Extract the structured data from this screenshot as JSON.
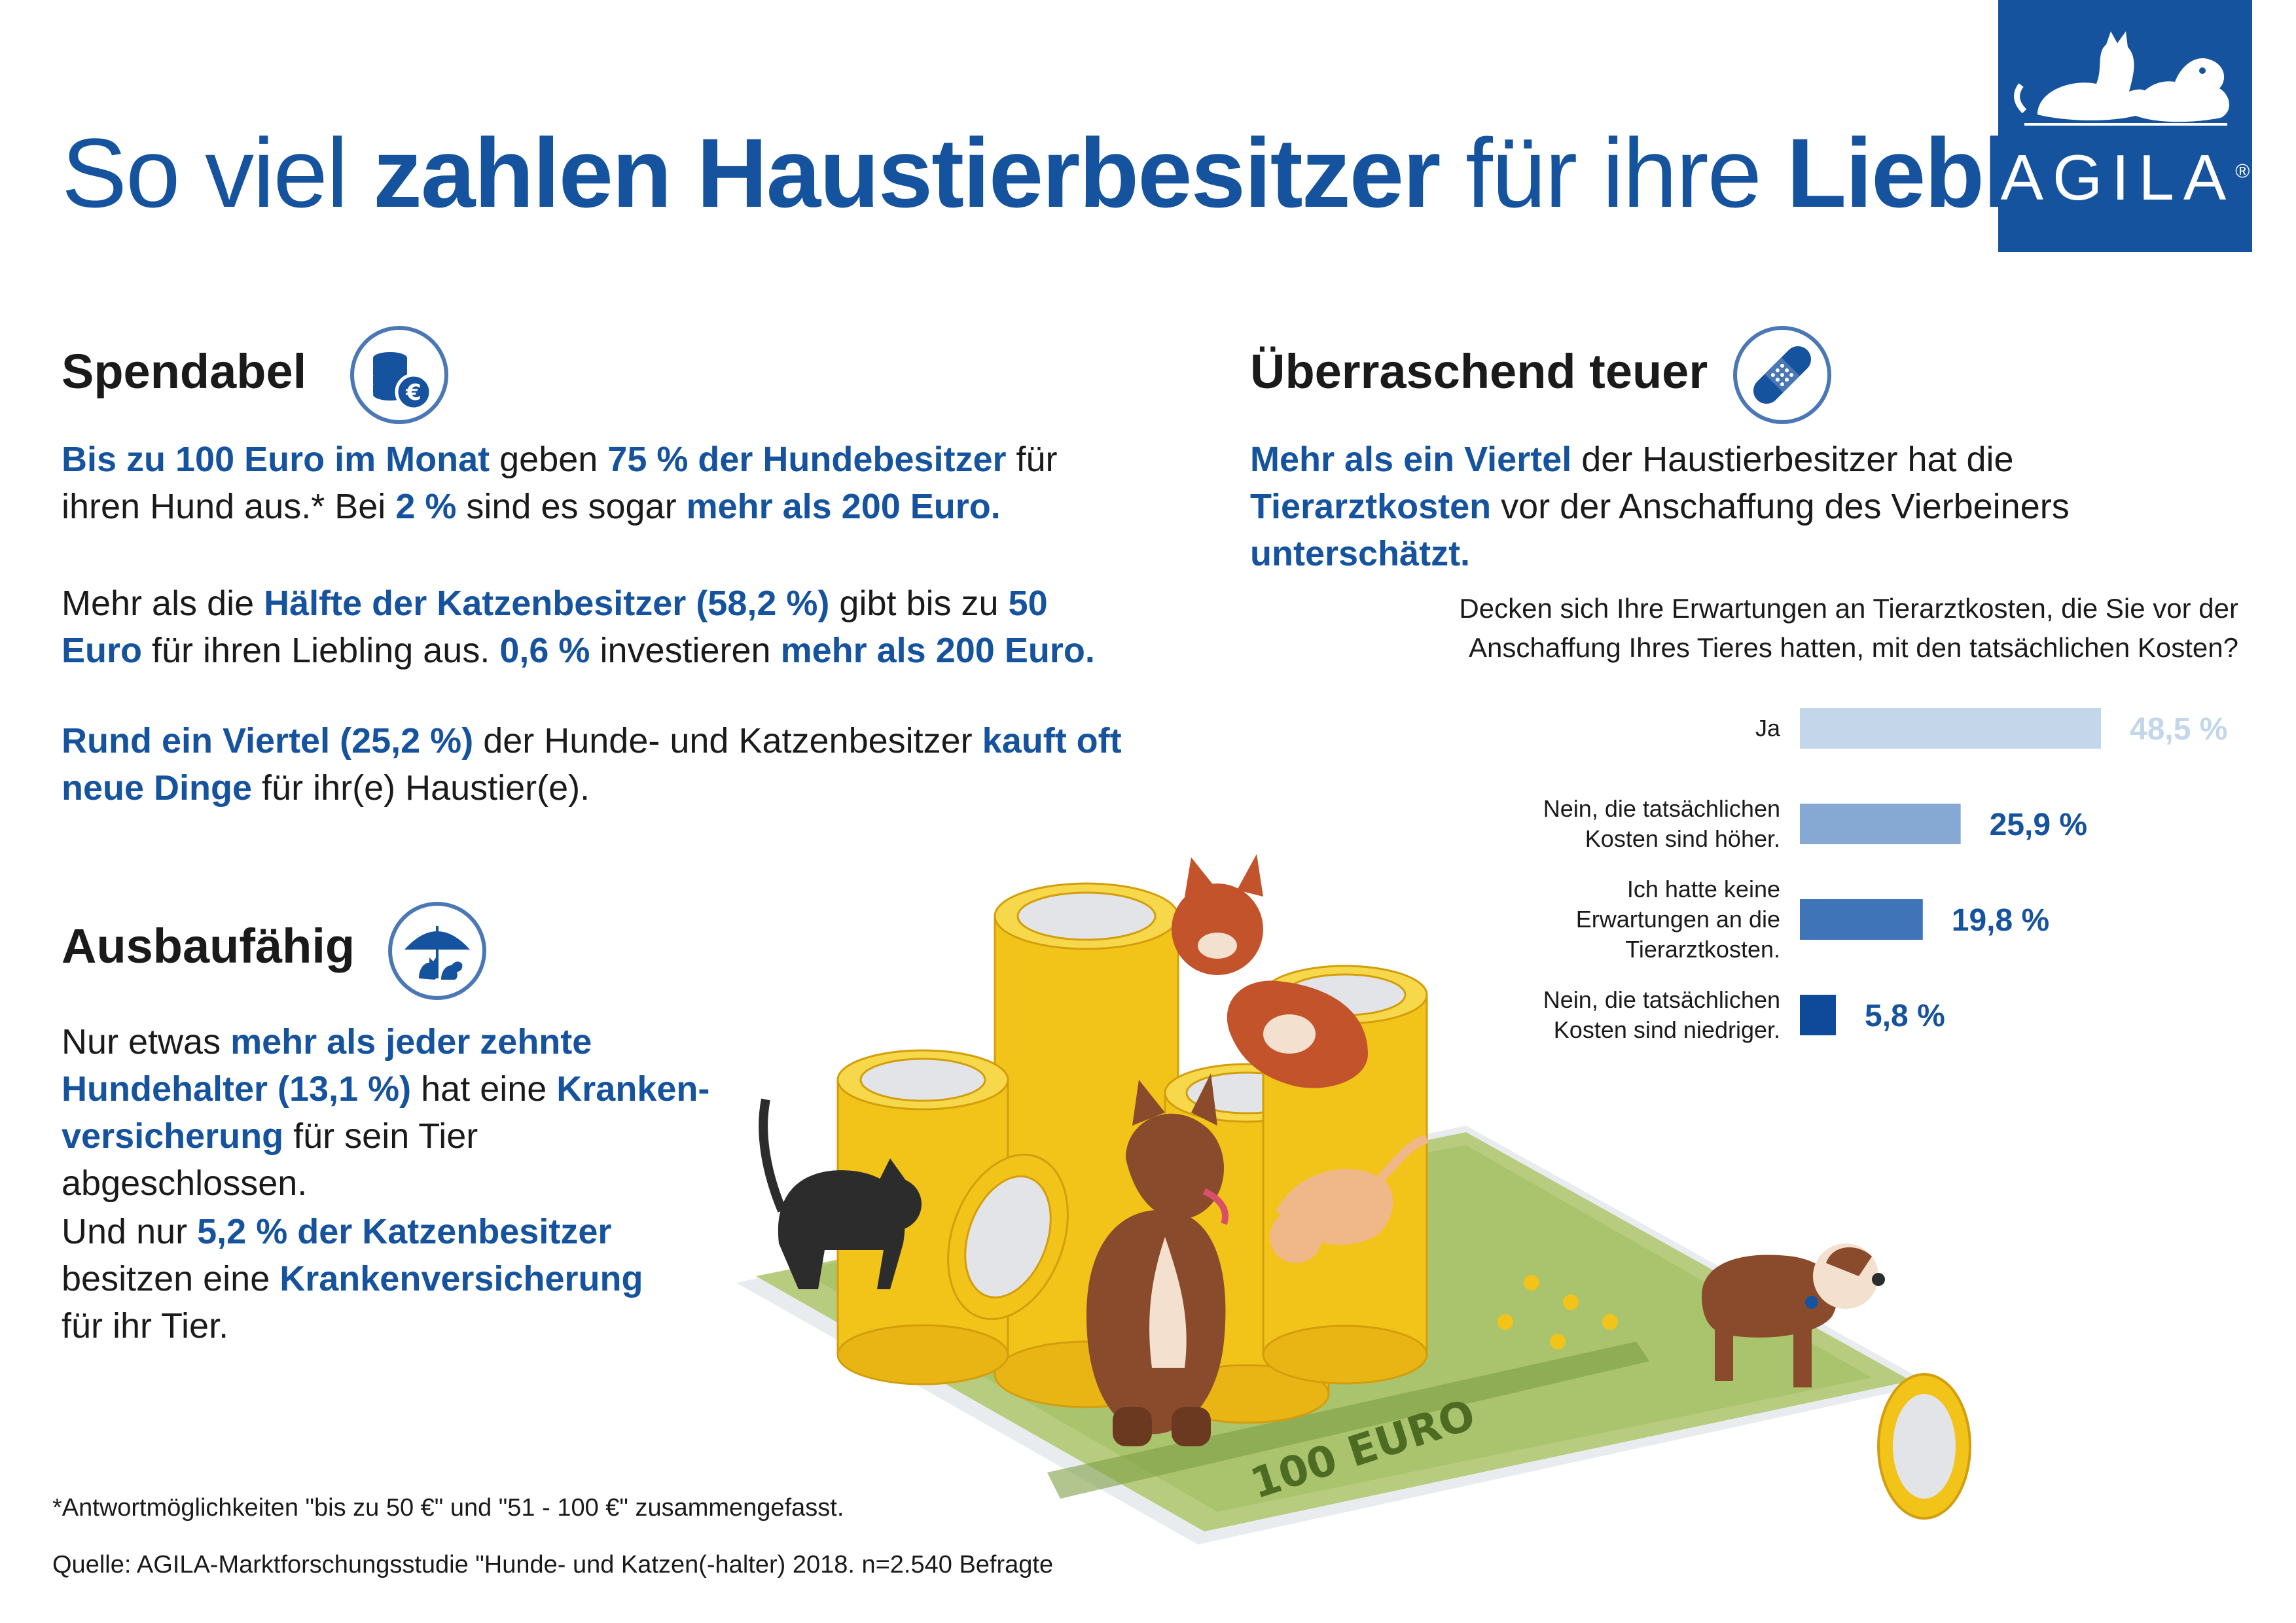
{
  "header": {
    "title_part1": "So viel ",
    "title_bold1": "zahlen Haustierbesitzer",
    "title_part2": " für ihre ",
    "title_bold2": "Lieblinge"
  },
  "logo": {
    "text": "AGILA",
    "registered": "®",
    "icon": "cat-dog-silhouette-icon",
    "color": "#16539e"
  },
  "sections": {
    "spendabel": {
      "heading": "Spendabel",
      "icon": "coins-euro-icon",
      "p1": [
        {
          "t": "Bis zu 100 Euro im Monat",
          "b": true
        },
        {
          "t": " geben ",
          "b": false
        },
        {
          "t": "75 % der Hundebesitzer",
          "b": true
        },
        {
          "t": " für ihren Hund aus.* Bei ",
          "b": false
        },
        {
          "t": "2 %",
          "b": true
        },
        {
          "t": " sind es sogar ",
          "b": false
        },
        {
          "t": "mehr als 200 Euro.",
          "b": true
        }
      ],
      "p2": [
        {
          "t": "Mehr als die ",
          "b": false
        },
        {
          "t": "Hälfte der Katzenbesitzer (58,2 %)",
          "b": true
        },
        {
          "t": " gibt bis zu ",
          "b": false
        },
        {
          "t": "50 Euro",
          "b": true
        },
        {
          "t": " für ihren Liebling aus. ",
          "b": false
        },
        {
          "t": "0,6 %",
          "b": true
        },
        {
          "t": " investieren ",
          "b": false
        },
        {
          "t": "mehr als 200 Euro.",
          "b": true
        }
      ],
      "p3": [
        {
          "t": "Rund ein Viertel (25,2 %)",
          "b": true
        },
        {
          "t": " der Hunde- und Katzenbesitzer ",
          "b": false
        },
        {
          "t": "kauft oft neue Dinge",
          "b": true
        },
        {
          "t": " für ihr(e) Haustier(e).",
          "b": false
        }
      ]
    },
    "ausbaufaehig": {
      "heading": "Ausbaufähig",
      "icon": "umbrella-pets-icon",
      "p1": [
        {
          "t": "Nur etwas ",
          "b": false
        },
        {
          "t": "mehr als jeder zehnte Hundehalter (13,1 %)",
          "b": true
        },
        {
          "t": " hat eine ",
          "b": false
        },
        {
          "t": "Kranken-versicherung",
          "b": true
        },
        {
          "t": " für sein Tier abgeschlossen.",
          "b": false
        }
      ],
      "p2": [
        {
          "t": "Und nur ",
          "b": false
        },
        {
          "t": "5,2 % der Katzenbesitzer",
          "b": true
        },
        {
          "t": " besitzen eine ",
          "b": false
        },
        {
          "t": "Krankenversicherung",
          "b": true
        },
        {
          "t": " für ihr Tier.",
          "b": false
        }
      ]
    },
    "teuer": {
      "heading": "Überraschend teuer",
      "icon": "bandage-icon",
      "p1": [
        {
          "t": "Mehr als ein Viertel",
          "b": true
        },
        {
          "t": " der Haustierbesitzer hat die ",
          "b": false
        },
        {
          "t": "Tierarztkosten",
          "b": true
        },
        {
          "t": " vor der Anschaffung des Vierbeiners ",
          "b": false
        },
        {
          "t": "unterschätzt.",
          "b": true
        }
      ]
    }
  },
  "chart_data": {
    "type": "bar",
    "orientation": "horizontal",
    "question": "Decken sich Ihre Erwartungen an Tierarztkosten, die Sie vor der Anschaffung Ihres Tieres hatten, mit den tatsächlichen Kosten?",
    "categories": [
      "Ja",
      "Nein, die tatsächlichen Kosten sind höher.",
      "Ich hatte keine Erwartungen an die Tierarztkosten.",
      "Nein, die tatsächlichen Kosten sind niedriger."
    ],
    "values": [
      48.5,
      25.9,
      19.8,
      5.8
    ],
    "value_labels": [
      "48,5 %",
      "25,9 %",
      "19,8 %",
      "5,8 %"
    ],
    "colors": [
      "#c3d6ea",
      "#86a9d4",
      "#3f75b8",
      "#0f4a9a"
    ],
    "xlim": [
      0,
      48.5
    ],
    "grid": false,
    "legend": "none"
  },
  "footer": {
    "note": "*Antwortmöglichkeiten \"bis zu 50 €\" und \"51 - 100 €\" zusammengefasst.",
    "source": "Quelle: AGILA-Marktforschungsstudie \"Hunde- und Katzen(-halter) 2018. n=2.540 Befragte"
  },
  "illustration": {
    "icon": "money-pets-illustration-icon",
    "banknote_text": "100 EURO",
    "colors": {
      "coin_gold": "#f2c318",
      "note_green": "#a9c46c",
      "dog_brown": "#8a4b2c",
      "cat_red": "#c2532b"
    }
  }
}
